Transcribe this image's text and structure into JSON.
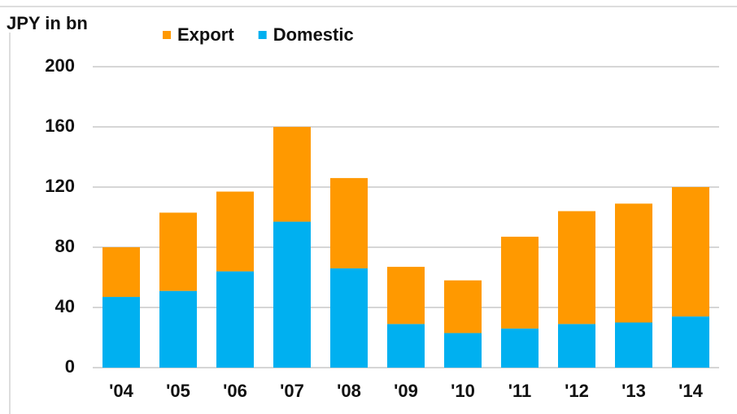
{
  "chart_data": {
    "type": "stacked_bar",
    "y_label": "JPY in bn",
    "categories": [
      "'04",
      "'05",
      "'06",
      "'07",
      "'08",
      "'09",
      "'10",
      "'11",
      "'12",
      "'13",
      "'14"
    ],
    "series": [
      {
        "name": "Export",
        "color": "#ff9900",
        "values": [
          33,
          52,
          53,
          63,
          60,
          38,
          35,
          61,
          75,
          79,
          86
        ]
      },
      {
        "name": "Domestic",
        "color": "#00b0f0",
        "values": [
          47,
          51,
          64,
          97,
          66,
          29,
          23,
          26,
          29,
          30,
          34
        ]
      }
    ],
    "ylim": [
      0,
      200
    ],
    "yticks": [
      0,
      40,
      80,
      120,
      160,
      200
    ],
    "grid": true
  }
}
